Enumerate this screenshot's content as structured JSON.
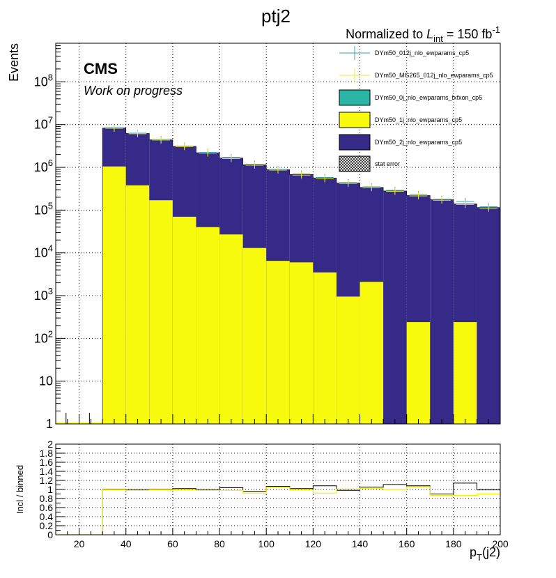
{
  "chart_data": {
    "type": "bar",
    "title": "ptj2",
    "normalization": {
      "prefix": "Normalized to ",
      "L": "L",
      "sub": "int",
      "value": " = 150 fb",
      "sup": "-1"
    },
    "experiment": "CMS",
    "status": "Work on progress",
    "colors": {
      "dy2j": "#352a87",
      "dy1j": "#f8fa0d",
      "dy0j": "#2ab5a5",
      "nlo012j": "#3b9fb0",
      "mg265": "#e8e830",
      "ratio_incl": "#000000",
      "ratio_binned": "#f0f000",
      "grid": "#000000"
    },
    "top": {
      "ylabel": "Events",
      "yscale": "log",
      "ylim": [
        1,
        800000000
      ],
      "xlim": [
        10,
        200
      ],
      "yticks": [
        {
          "v": 1,
          "label": "1"
        },
        {
          "v": 10,
          "label": "10"
        },
        {
          "v": 100,
          "base": "10",
          "exp": "2"
        },
        {
          "v": 1000,
          "base": "10",
          "exp": "3"
        },
        {
          "v": 10000,
          "base": "10",
          "exp": "4"
        },
        {
          "v": 100000,
          "base": "10",
          "exp": "5"
        },
        {
          "v": 1000000,
          "base": "10",
          "exp": "6"
        },
        {
          "v": 10000000,
          "base": "10",
          "exp": "7"
        },
        {
          "v": 100000000,
          "base": "10",
          "exp": "8"
        }
      ],
      "bin_edges": [
        10,
        20,
        30,
        40,
        50,
        60,
        70,
        80,
        90,
        100,
        110,
        120,
        130,
        140,
        150,
        160,
        170,
        180,
        190,
        200
      ],
      "series": [
        {
          "name": "DYm50_2j_nlo_ewparams_cp5",
          "kind": "stack_total",
          "values": [
            1,
            1,
            8300000,
            6200000,
            4400000,
            3100000,
            2200000,
            1650000,
            1150000,
            880000,
            680000,
            560000,
            430000,
            340000,
            280000,
            220000,
            175000,
            140000,
            115000
          ]
        },
        {
          "name": "DYm50_1j_nlo_ewparams_cp5",
          "kind": "stack",
          "values": [
            1,
            1,
            1050000,
            380000,
            170000,
            70000,
            40000,
            27000,
            13000,
            6500,
            6000,
            3500,
            950,
            2100,
            1,
            240,
            1,
            240,
            1
          ]
        },
        {
          "name": "DYm50_0j_nlo_ewparams_fxfxon_cp5",
          "kind": "stack",
          "values": []
        },
        {
          "name": "DYm50_012j_nlo_ewparams_cp5",
          "kind": "points",
          "values": [
            null,
            null,
            8500000,
            6300000,
            4500000,
            3150000,
            2250000,
            1700000,
            1180000,
            900000,
            700000,
            580000,
            440000,
            350000,
            290000,
            230000,
            180000,
            160000,
            120000
          ]
        },
        {
          "name": "DYm50_MG265_012j_nlo_ewparams_cp5",
          "kind": "points",
          "values": [
            null,
            null,
            8200000,
            6100000,
            4350000,
            3050000,
            2150000,
            1600000,
            1120000,
            860000,
            660000,
            540000,
            420000,
            335000,
            275000,
            215000,
            170000,
            135000,
            110000
          ]
        }
      ],
      "stat_error_label": "stat error"
    },
    "ratio": {
      "ylabel": "Incl / binned",
      "ylim": [
        0,
        2
      ],
      "yticks": [
        0,
        0.2,
        0.4,
        0.6,
        0.8,
        1,
        1.2,
        1.4,
        1.6,
        1.8,
        2
      ],
      "xlabel": {
        "base": "p",
        "sub": "T",
        "rest": "(j2)"
      },
      "xticks": [
        20,
        40,
        60,
        80,
        100,
        120,
        140,
        160,
        180,
        200
      ],
      "series": [
        {
          "name": "DYm50_012j_nlo_ewparams_cp5 / binned",
          "values": [
            0,
            0,
            1.0,
            0.99,
            1.0,
            1.02,
            0.99,
            1.04,
            0.96,
            1.07,
            1.02,
            1.08,
            0.98,
            1.05,
            1.11,
            1.08,
            0.9,
            1.14,
            0.99
          ]
        },
        {
          "name": "DYm50_MG265_012j_nlo_ewparams_cp5 / binned",
          "values": [
            0,
            0,
            0.99,
            0.98,
            0.99,
            0.99,
            0.98,
            0.98,
            0.92,
            1.05,
            0.99,
            0.92,
            1.01,
            1.02,
            1.0,
            1.06,
            0.87,
            0.87,
            0.9
          ]
        }
      ]
    }
  }
}
